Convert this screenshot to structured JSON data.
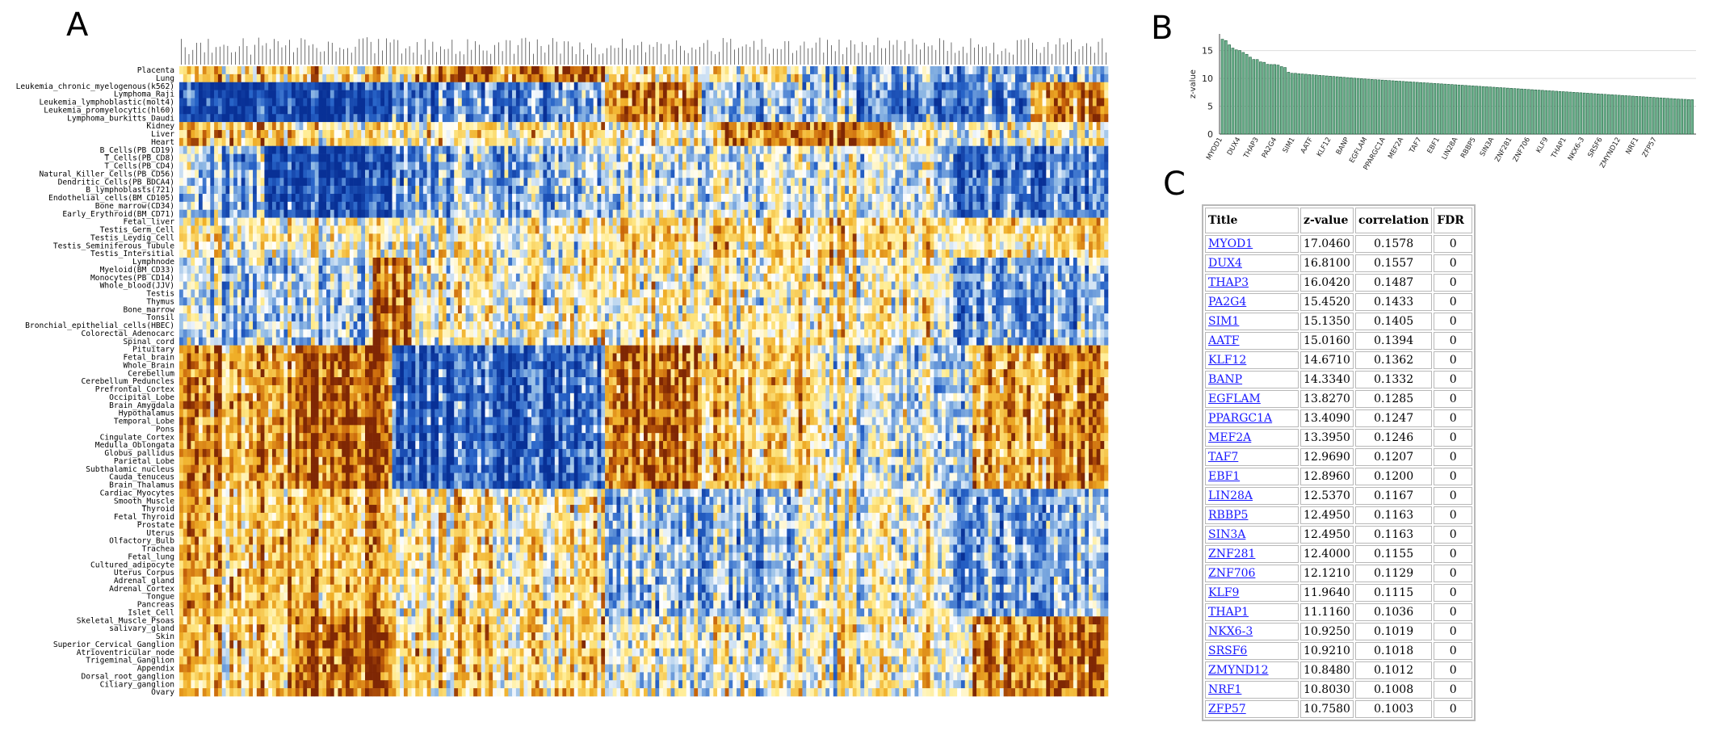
{
  "panels": {
    "a": "A",
    "b": "B",
    "c": "C"
  },
  "colors": {
    "low": "#08306b",
    "mid": "#ffffff",
    "high": "#7f2704",
    "bar": "#2e8b57"
  },
  "chart_data": [
    {
      "type": "heatmap",
      "panel": "A",
      "row_labels": [
        "Placenta",
        "Lung",
        "Leukemia_chronic_myelogenous(k562)",
        "Lymphoma_Raji",
        "Leukemia_lymphoblastic(molt4)",
        "Leukemia_promyelocytic(hl60)",
        "Lymphoma_burkitts_Daudi",
        "Kidney",
        "Liver",
        "Heart",
        "B_Cells(PB_CD19)",
        "T_Cells(PB_CD8)",
        "T_Cells(PB_CD4)",
        "Natural_Killer_Cells(PB_CD56)",
        "Dendritic_Cells(PB_BDCA4)",
        "B_lymphoblasts(721)",
        "Endothelial_cells(BM_CD105)",
        "Bone_marrow(CD34)",
        "Early_Erythroid(BM_CD71)",
        "Fetal_liver",
        "Testis_Germ_Cell",
        "Testis_Leydig_Cell",
        "Testis_Seminiferous_Tubule",
        "Testis_Intersitial",
        "Lymphnode",
        "Myeloid(BM_CD33)",
        "Monocytes(PB_CD14)",
        "Whole_blood(JJV)",
        "Testis",
        "Thymus",
        "Bone_marrow",
        "Tonsil",
        "Bronchial_epithelial_cells(HBEC)",
        "Colorectal_Adenocarc",
        "Spinal_cord",
        "Pituitary",
        "Fetal_brain",
        "Whole_Brain",
        "Cerebellum",
        "Cerebellum_Peduncles",
        "Prefrontal_Cortex",
        "Occipital_Lobe",
        "Brain_Amygdala",
        "Hypothalamus",
        "Temporal_Lobe",
        "Pons",
        "Cingulate_Cortex",
        "Medulla_Oblongata",
        "Globus_pallidus",
        "Parietal_Lobe",
        "Subthalamic_nucleus",
        "Cauda_tenuceus",
        "Brain_Thalamus",
        "Cardiac_Myocytes",
        "Smooth_Muscle",
        "Thyroid",
        "Fetal_Thyroid",
        "Prostate",
        "Uterus",
        "Olfactory_Bulb",
        "Trachea",
        "Fetal_lung",
        "Cultured_adipocyte",
        "Uterus_Corpus",
        "Adrenal_gland",
        "Adrenal_Cortex",
        "Tongue",
        "Pancreas",
        "Islet_Cell",
        "Skeletal_Muscle_Psoas",
        "salivary_gland",
        "Skin",
        "Superior_Cervical_Ganglion",
        "Atrioventricular_node",
        "Trigeminal_Ganglion",
        "Appendix",
        "Dorsal_root_ganglion",
        "Ciliary_ganglion",
        "Ovary"
      ],
      "n_columns": 240,
      "scale": "diverging",
      "value_range": [
        -1,
        1
      ]
    },
    {
      "type": "bar",
      "panel": "B",
      "ylabel": "z-value",
      "ylim": [
        0,
        18
      ],
      "yticks": [
        0,
        5,
        10,
        15
      ],
      "grid": true,
      "values": [
        17.046,
        16.81,
        16.042,
        15.452,
        15.135,
        15.016,
        14.671,
        14.334,
        13.827,
        13.409,
        13.395,
        12.969,
        12.896,
        12.537,
        12.495,
        12.495,
        12.4,
        12.121,
        11.964,
        11.116,
        10.925,
        10.921,
        10.848,
        10.803,
        10.758,
        10.7,
        10.65,
        10.6,
        10.55,
        10.5,
        10.45,
        10.4,
        10.35,
        10.3,
        10.25,
        10.2,
        10.15,
        10.1,
        10.05,
        10.0,
        9.95,
        9.9,
        9.86,
        9.82,
        9.78,
        9.74,
        9.7,
        9.66,
        9.62,
        9.58,
        9.54,
        9.5,
        9.46,
        9.42,
        9.38,
        9.34,
        9.3,
        9.26,
        9.22,
        9.18,
        9.14,
        9.1,
        9.06,
        9.02,
        8.98,
        8.94,
        8.9,
        8.86,
        8.82,
        8.78,
        8.74,
        8.7,
        8.66,
        8.62,
        8.58,
        8.54,
        8.5,
        8.46,
        8.42,
        8.38,
        8.34,
        8.3,
        8.26,
        8.22,
        8.18,
        8.14,
        8.1,
        8.06,
        8.02,
        7.98,
        7.94,
        7.9,
        7.86,
        7.82,
        7.78,
        7.74,
        7.7,
        7.66,
        7.62,
        7.58,
        7.54,
        7.5,
        7.46,
        7.42,
        7.38,
        7.34,
        7.3,
        7.26,
        7.22,
        7.18,
        7.14,
        7.1,
        7.06,
        7.02,
        6.98,
        6.94,
        6.9,
        6.86,
        6.82,
        6.78,
        6.74,
        6.7,
        6.66,
        6.62,
        6.58,
        6.54,
        6.5,
        6.46,
        6.42,
        6.38,
        6.34,
        6.3,
        6.27,
        6.24,
        6.21,
        6.18
      ]
    }
  ],
  "table": {
    "headers": [
      "Title",
      "z-value",
      "correlation",
      "FDR"
    ],
    "rows": [
      [
        "MYOD1",
        "17.0460",
        "0.1578",
        "0"
      ],
      [
        "DUX4",
        "16.8100",
        "0.1557",
        "0"
      ],
      [
        "THAP3",
        "16.0420",
        "0.1487",
        "0"
      ],
      [
        "PA2G4",
        "15.4520",
        "0.1433",
        "0"
      ],
      [
        "SIM1",
        "15.1350",
        "0.1405",
        "0"
      ],
      [
        "AATF",
        "15.0160",
        "0.1394",
        "0"
      ],
      [
        "KLF12",
        "14.6710",
        "0.1362",
        "0"
      ],
      [
        "BANP",
        "14.3340",
        "0.1332",
        "0"
      ],
      [
        "EGFLAM",
        "13.8270",
        "0.1285",
        "0"
      ],
      [
        "PPARGC1A",
        "13.4090",
        "0.1247",
        "0"
      ],
      [
        "MEF2A",
        "13.3950",
        "0.1246",
        "0"
      ],
      [
        "TAF7",
        "12.9690",
        "0.1207",
        "0"
      ],
      [
        "EBF1",
        "12.8960",
        "0.1200",
        "0"
      ],
      [
        "LIN28A",
        "12.5370",
        "0.1167",
        "0"
      ],
      [
        "RBBP5",
        "12.4950",
        "0.1163",
        "0"
      ],
      [
        "SIN3A",
        "12.4950",
        "0.1163",
        "0"
      ],
      [
        "ZNF281",
        "12.4000",
        "0.1155",
        "0"
      ],
      [
        "ZNF706",
        "12.1210",
        "0.1129",
        "0"
      ],
      [
        "KLF9",
        "11.9640",
        "0.1115",
        "0"
      ],
      [
        "THAP1",
        "11.1160",
        "0.1036",
        "0"
      ],
      [
        "NKX6-3",
        "10.9250",
        "0.1019",
        "0"
      ],
      [
        "SRSF6",
        "10.9210",
        "0.1018",
        "0"
      ],
      [
        "ZMYND12",
        "10.8480",
        "0.1012",
        "0"
      ],
      [
        "NRF1",
        "10.8030",
        "0.1008",
        "0"
      ],
      [
        "ZFP57",
        "10.7580",
        "0.1003",
        "0"
      ]
    ]
  }
}
